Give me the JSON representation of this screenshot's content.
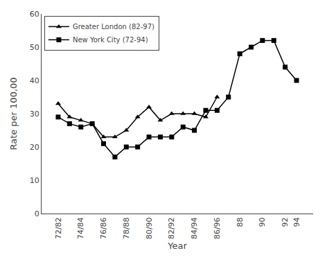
{
  "chart_data": {
    "type": "line",
    "xlabel": "Year",
    "ylabel": "Rate per 100,00",
    "categories": [
      "72/82",
      null,
      "74/84",
      null,
      "76/86",
      null,
      "78/88",
      null,
      "80/90",
      null,
      "82/92",
      null,
      "84/94",
      null,
      "86/96",
      null,
      "88",
      null,
      "90",
      null,
      "92",
      "94"
    ],
    "series": [
      {
        "name": "Greater London (82-97)",
        "color": "#000000",
        "marker": "triangle",
        "values": [
          33,
          29,
          28,
          27,
          23,
          23,
          25,
          29,
          32,
          28,
          30,
          30,
          30,
          29,
          35,
          null,
          null,
          null,
          null,
          null,
          null,
          null
        ]
      },
      {
        "name": "New York City (72-94)",
        "color": "#000000",
        "marker": "square",
        "values": [
          29,
          27,
          26,
          27,
          21,
          17,
          20,
          20,
          23,
          23,
          23,
          26,
          25,
          31,
          31,
          35,
          48,
          50,
          52,
          52,
          44,
          40
        ]
      }
    ],
    "ylim": [
      0,
      60
    ],
    "yticks": [
      0,
      10,
      20,
      30,
      40,
      50,
      60
    ],
    "grid": false,
    "legend": "upper left"
  }
}
